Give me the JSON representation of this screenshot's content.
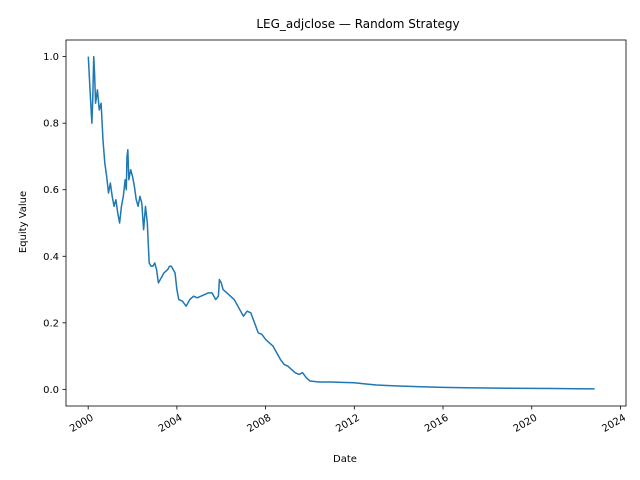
{
  "chart_data": {
    "type": "line",
    "title": "LEG_adjclose — Random Strategy",
    "xlabel": "Date",
    "ylabel": "Equity Value",
    "x_ticks": [
      "2000",
      "2004",
      "2008",
      "2012",
      "2016",
      "2020",
      "2024"
    ],
    "y_ticks": [
      "0.0",
      "0.2",
      "0.4",
      "0.6",
      "0.8",
      "1.0"
    ],
    "xlim": [
      "1999-01-01",
      "2024-04-01"
    ],
    "ylim": [
      -0.05,
      1.05
    ],
    "grid": false,
    "series": [
      {
        "color": "#1f77b4",
        "points": [
          [
            "2000-01-03",
            1.0
          ],
          [
            "2000-02-01",
            0.9
          ],
          [
            "2000-03-01",
            0.8
          ],
          [
            "2000-03-15",
            0.87
          ],
          [
            "2000-04-01",
            1.0
          ],
          [
            "2000-04-15",
            0.95
          ],
          [
            "2000-05-01",
            0.86
          ],
          [
            "2000-06-01",
            0.9
          ],
          [
            "2000-07-01",
            0.84
          ],
          [
            "2000-08-01",
            0.86
          ],
          [
            "2000-09-01",
            0.75
          ],
          [
            "2000-10-01",
            0.68
          ],
          [
            "2000-11-01",
            0.64
          ],
          [
            "2000-12-01",
            0.59
          ],
          [
            "2001-01-01",
            0.62
          ],
          [
            "2001-02-01",
            0.58
          ],
          [
            "2001-03-01",
            0.55
          ],
          [
            "2001-04-01",
            0.57
          ],
          [
            "2001-05-01",
            0.53
          ],
          [
            "2001-06-01",
            0.5
          ],
          [
            "2001-07-01",
            0.55
          ],
          [
            "2001-08-01",
            0.58
          ],
          [
            "2001-09-01",
            0.63
          ],
          [
            "2001-09-20",
            0.6
          ],
          [
            "2001-10-01",
            0.7
          ],
          [
            "2001-10-15",
            0.72
          ],
          [
            "2001-11-01",
            0.63
          ],
          [
            "2001-12-01",
            0.66
          ],
          [
            "2002-01-01",
            0.64
          ],
          [
            "2002-02-01",
            0.61
          ],
          [
            "2002-03-01",
            0.57
          ],
          [
            "2002-04-01",
            0.55
          ],
          [
            "2002-05-01",
            0.58
          ],
          [
            "2002-06-01",
            0.56
          ],
          [
            "2002-07-01",
            0.48
          ],
          [
            "2002-08-01",
            0.55
          ],
          [
            "2002-09-01",
            0.5
          ],
          [
            "2002-10-01",
            0.38
          ],
          [
            "2002-11-01",
            0.37
          ],
          [
            "2002-12-01",
            0.37
          ],
          [
            "2003-01-01",
            0.38
          ],
          [
            "2003-02-01",
            0.36
          ],
          [
            "2003-03-01",
            0.32
          ],
          [
            "2003-04-01",
            0.33
          ],
          [
            "2003-05-01",
            0.34
          ],
          [
            "2003-06-01",
            0.35
          ],
          [
            "2003-08-01",
            0.36
          ],
          [
            "2003-09-01",
            0.37
          ],
          [
            "2003-10-01",
            0.37
          ],
          [
            "2003-11-01",
            0.36
          ],
          [
            "2003-12-01",
            0.35
          ],
          [
            "2004-01-01",
            0.3
          ],
          [
            "2004-02-01",
            0.27
          ],
          [
            "2004-04-01",
            0.265
          ],
          [
            "2004-06-01",
            0.25
          ],
          [
            "2004-08-01",
            0.27
          ],
          [
            "2004-10-01",
            0.28
          ],
          [
            "2004-12-01",
            0.275
          ],
          [
            "2005-02-01",
            0.28
          ],
          [
            "2005-04-01",
            0.285
          ],
          [
            "2005-06-01",
            0.29
          ],
          [
            "2005-08-01",
            0.29
          ],
          [
            "2005-10-01",
            0.27
          ],
          [
            "2005-11-15",
            0.28
          ],
          [
            "2005-12-01",
            0.33
          ],
          [
            "2006-01-01",
            0.32
          ],
          [
            "2006-02-01",
            0.3
          ],
          [
            "2006-04-01",
            0.29
          ],
          [
            "2006-06-01",
            0.28
          ],
          [
            "2006-08-01",
            0.27
          ],
          [
            "2006-10-01",
            0.25
          ],
          [
            "2006-12-01",
            0.23
          ],
          [
            "2007-01-01",
            0.22
          ],
          [
            "2007-03-01",
            0.235
          ],
          [
            "2007-05-01",
            0.23
          ],
          [
            "2007-07-01",
            0.2
          ],
          [
            "2007-09-01",
            0.17
          ],
          [
            "2007-11-01",
            0.165
          ],
          [
            "2008-01-01",
            0.15
          ],
          [
            "2008-03-01",
            0.14
          ],
          [
            "2008-05-01",
            0.13
          ],
          [
            "2008-07-01",
            0.11
          ],
          [
            "2008-09-01",
            0.09
          ],
          [
            "2008-11-01",
            0.075
          ],
          [
            "2009-01-01",
            0.07
          ],
          [
            "2009-03-01",
            0.06
          ],
          [
            "2009-05-01",
            0.05
          ],
          [
            "2009-07-01",
            0.045
          ],
          [
            "2009-09-01",
            0.05
          ],
          [
            "2009-11-01",
            0.035
          ],
          [
            "2010-01-01",
            0.025
          ],
          [
            "2010-06-01",
            0.022
          ],
          [
            "2011-01-01",
            0.022
          ],
          [
            "2011-06-01",
            0.021
          ],
          [
            "2012-01-01",
            0.02
          ],
          [
            "2012-06-01",
            0.017
          ],
          [
            "2013-01-01",
            0.013
          ],
          [
            "2014-01-01",
            0.01
          ],
          [
            "2015-01-01",
            0.008
          ],
          [
            "2016-01-01",
            0.006
          ],
          [
            "2017-01-01",
            0.005
          ],
          [
            "2018-01-01",
            0.004
          ],
          [
            "2019-01-01",
            0.0035
          ],
          [
            "2020-01-01",
            0.003
          ],
          [
            "2021-01-01",
            0.0025
          ],
          [
            "2022-01-01",
            0.002
          ],
          [
            "2022-11-01",
            0.0015
          ]
        ]
      }
    ]
  }
}
